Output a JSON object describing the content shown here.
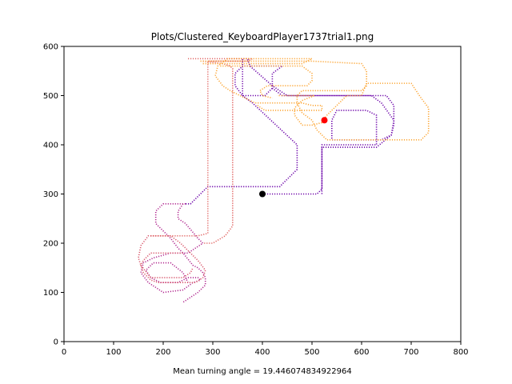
{
  "chart_data": {
    "type": "scatter",
    "title": "Plots/Clustered_KeyboardPlayer1737trial1.png",
    "xlabel": "Mean turning angle = 19.446074834922964",
    "ylabel": "",
    "xlim": [
      0,
      800
    ],
    "ylim": [
      0,
      600
    ],
    "xticks": [
      0,
      100,
      200,
      300,
      400,
      500,
      600,
      700,
      800
    ],
    "yticks": [
      0,
      100,
      200,
      300,
      400,
      500,
      600
    ],
    "grid": false,
    "colors": {
      "purple": "#6a00a8",
      "magenta": "#b12a90",
      "pink": "#d8576b",
      "red": "#e16462",
      "orange": "#fca636",
      "start_marker": "#000000",
      "end_marker": "#ff0000"
    },
    "series": [
      {
        "color_key": "purple",
        "points": [
          [
            400,
            300
          ],
          [
            510,
            300
          ],
          [
            520,
            310
          ],
          [
            520,
            400
          ],
          [
            630,
            400
          ],
          [
            630,
            460
          ],
          [
            610,
            470
          ],
          [
            550,
            470
          ],
          [
            540,
            450
          ],
          [
            540,
            410
          ],
          [
            640,
            410
          ],
          [
            660,
            420
          ],
          [
            665,
            440
          ],
          [
            665,
            480
          ],
          [
            650,
            500
          ],
          [
            440,
            500
          ],
          [
            420,
            515
          ],
          [
            420,
            545
          ],
          [
            440,
            560
          ],
          [
            410,
            560
          ],
          [
            360,
            560
          ],
          [
            345,
            545
          ],
          [
            345,
            520
          ],
          [
            360,
            500
          ],
          [
            405,
            500
          ],
          [
            420,
            515
          ]
        ]
      },
      {
        "color_key": "purple",
        "points": [
          [
            520,
            300
          ],
          [
            520,
            395
          ],
          [
            630,
            395
          ],
          [
            660,
            420
          ],
          [
            665,
            450
          ],
          [
            640,
            485
          ],
          [
            620,
            500
          ],
          [
            450,
            500
          ],
          [
            420,
            520
          ],
          [
            375,
            560
          ],
          [
            370,
            575
          ],
          [
            360,
            575
          ],
          [
            360,
            545
          ],
          [
            360,
            500
          ],
          [
            380,
            485
          ],
          [
            470,
            400
          ],
          [
            470,
            350
          ],
          [
            435,
            315
          ],
          [
            290,
            315
          ],
          [
            275,
            300
          ],
          [
            255,
            280
          ],
          [
            245,
            280
          ]
        ]
      },
      {
        "color_key": "magenta",
        "points": [
          [
            245,
            280
          ],
          [
            200,
            280
          ],
          [
            185,
            265
          ],
          [
            185,
            240
          ],
          [
            200,
            225
          ],
          [
            215,
            210
          ],
          [
            230,
            190
          ],
          [
            240,
            180
          ],
          [
            260,
            155
          ],
          [
            270,
            150
          ],
          [
            280,
            140
          ],
          [
            285,
            130
          ],
          [
            285,
            115
          ],
          [
            270,
            100
          ],
          [
            240,
            80
          ]
        ]
      },
      {
        "color_key": "magenta",
        "points": [
          [
            240,
            280
          ],
          [
            230,
            265
          ],
          [
            230,
            250
          ],
          [
            245,
            240
          ],
          [
            270,
            210
          ],
          [
            280,
            200
          ],
          [
            250,
            180
          ],
          [
            215,
            180
          ],
          [
            180,
            170
          ],
          [
            160,
            160
          ],
          [
            155,
            140
          ],
          [
            170,
            120
          ],
          [
            185,
            110
          ],
          [
            200,
            100
          ],
          [
            240,
            105
          ],
          [
            260,
            120
          ],
          [
            275,
            125
          ],
          [
            270,
            130
          ],
          [
            250,
            130
          ],
          [
            230,
            120
          ],
          [
            195,
            120
          ],
          [
            175,
            130
          ],
          [
            165,
            145
          ],
          [
            180,
            160
          ],
          [
            215,
            160
          ],
          [
            240,
            140
          ],
          [
            250,
            120
          ]
        ]
      },
      {
        "color_key": "pink",
        "points": [
          [
            240,
            180
          ],
          [
            175,
            180
          ],
          [
            160,
            165
          ],
          [
            155,
            155
          ],
          [
            160,
            140
          ],
          [
            175,
            125
          ],
          [
            190,
            120
          ],
          [
            265,
            120
          ],
          [
            280,
            130
          ],
          [
            285,
            145
          ],
          [
            270,
            165
          ],
          [
            250,
            185
          ],
          [
            235,
            200
          ],
          [
            215,
            215
          ],
          [
            210,
            215
          ],
          [
            170,
            215
          ],
          [
            155,
            195
          ],
          [
            150,
            170
          ],
          [
            155,
            155
          ],
          [
            175,
            130
          ],
          [
            240,
            130
          ],
          [
            255,
            140
          ],
          [
            260,
            150
          ]
        ]
      },
      {
        "color_key": "red",
        "points": [
          [
            250,
            575
          ],
          [
            260,
            575
          ],
          [
            280,
            575
          ],
          [
            300,
            575
          ],
          [
            340,
            575
          ],
          [
            360,
            575
          ],
          [
            370,
            575
          ],
          [
            380,
            575
          ],
          [
            370,
            570
          ],
          [
            340,
            570
          ],
          [
            290,
            570
          ],
          [
            290,
            550
          ],
          [
            290,
            400
          ],
          [
            290,
            220
          ],
          [
            270,
            215
          ],
          [
            210,
            215
          ],
          [
            190,
            215
          ],
          [
            175,
            215
          ]
        ]
      },
      {
        "color_key": "red",
        "points": [
          [
            280,
            570
          ],
          [
            320,
            565
          ],
          [
            335,
            560
          ],
          [
            340,
            555
          ],
          [
            340,
            400
          ],
          [
            340,
            235
          ],
          [
            325,
            215
          ],
          [
            300,
            200
          ],
          [
            280,
            200
          ]
        ]
      },
      {
        "color_key": "orange",
        "points": [
          [
            275,
            570
          ],
          [
            500,
            570
          ],
          [
            600,
            565
          ],
          [
            610,
            550
          ],
          [
            610,
            520
          ],
          [
            600,
            510
          ],
          [
            520,
            510
          ],
          [
            480,
            510
          ],
          [
            470,
            500
          ],
          [
            470,
            485
          ],
          [
            480,
            465
          ],
          [
            500,
            450
          ],
          [
            510,
            430
          ],
          [
            520,
            420
          ],
          [
            530,
            410
          ],
          [
            720,
            410
          ],
          [
            735,
            425
          ],
          [
            735,
            475
          ],
          [
            720,
            495
          ],
          [
            700,
            525
          ],
          [
            610,
            525
          ],
          [
            600,
            500
          ],
          [
            570,
            500
          ],
          [
            560,
            490
          ],
          [
            545,
            475
          ],
          [
            530,
            460
          ],
          [
            520,
            445
          ],
          [
            500,
            440
          ],
          [
            480,
            440
          ],
          [
            465,
            460
          ],
          [
            465,
            475
          ],
          [
            480,
            490
          ],
          [
            505,
            500
          ],
          [
            430,
            500
          ]
        ]
      },
      {
        "color_key": "orange",
        "points": [
          [
            280,
            565
          ],
          [
            480,
            565
          ],
          [
            500,
            575
          ],
          [
            330,
            575
          ],
          [
            310,
            560
          ],
          [
            305,
            540
          ],
          [
            320,
            520
          ],
          [
            335,
            510
          ],
          [
            385,
            485
          ],
          [
            480,
            485
          ],
          [
            500,
            480
          ],
          [
            520,
            480
          ],
          [
            520,
            470
          ],
          [
            420,
            470
          ],
          [
            405,
            470
          ],
          [
            390,
            480
          ],
          [
            390,
            480
          ]
        ]
      },
      {
        "color_key": "orange",
        "points": [
          [
            315,
            560
          ],
          [
            480,
            560
          ],
          [
            500,
            545
          ],
          [
            500,
            530
          ],
          [
            490,
            520
          ],
          [
            410,
            520
          ],
          [
            395,
            510
          ],
          [
            400,
            500
          ],
          [
            420,
            495
          ]
        ]
      }
    ],
    "markers": [
      {
        "x": 400,
        "y": 300,
        "color_key": "start_marker"
      },
      {
        "x": 525,
        "y": 450,
        "color_key": "end_marker"
      }
    ]
  }
}
